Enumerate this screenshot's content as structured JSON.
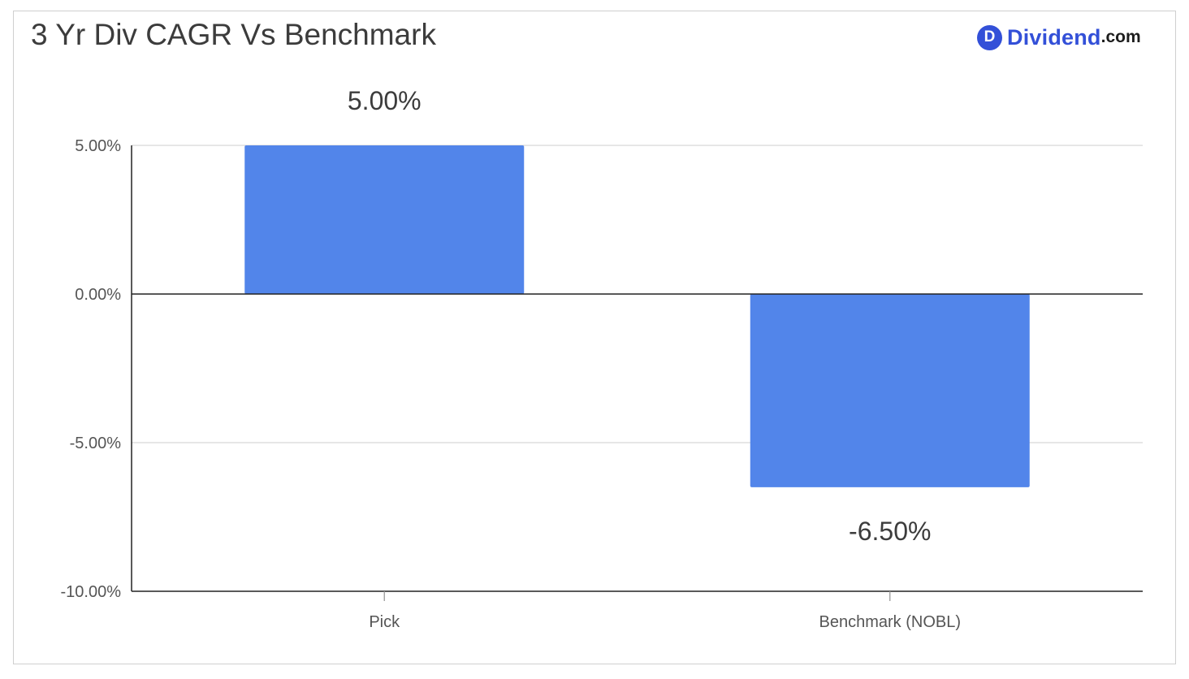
{
  "logo": {
    "mark": "D",
    "name": "Dividend",
    "suffix": ".com"
  },
  "chart_data": {
    "type": "bar",
    "title": "3 Yr Div CAGR Vs Benchmark",
    "categories": [
      "Pick",
      "Benchmark (NOBL)"
    ],
    "values": [
      5.0,
      -6.5
    ],
    "value_labels": [
      "5.00%",
      "-6.50%"
    ],
    "ylim": [
      -10,
      5
    ],
    "yticks": [
      5,
      0,
      -5,
      -10
    ],
    "ytick_labels": [
      "5.00%",
      "0.00%",
      "-5.00%",
      "-10.00%"
    ],
    "xlabel": "",
    "ylabel": "",
    "grid": true,
    "bar_color": "#5285ea"
  }
}
